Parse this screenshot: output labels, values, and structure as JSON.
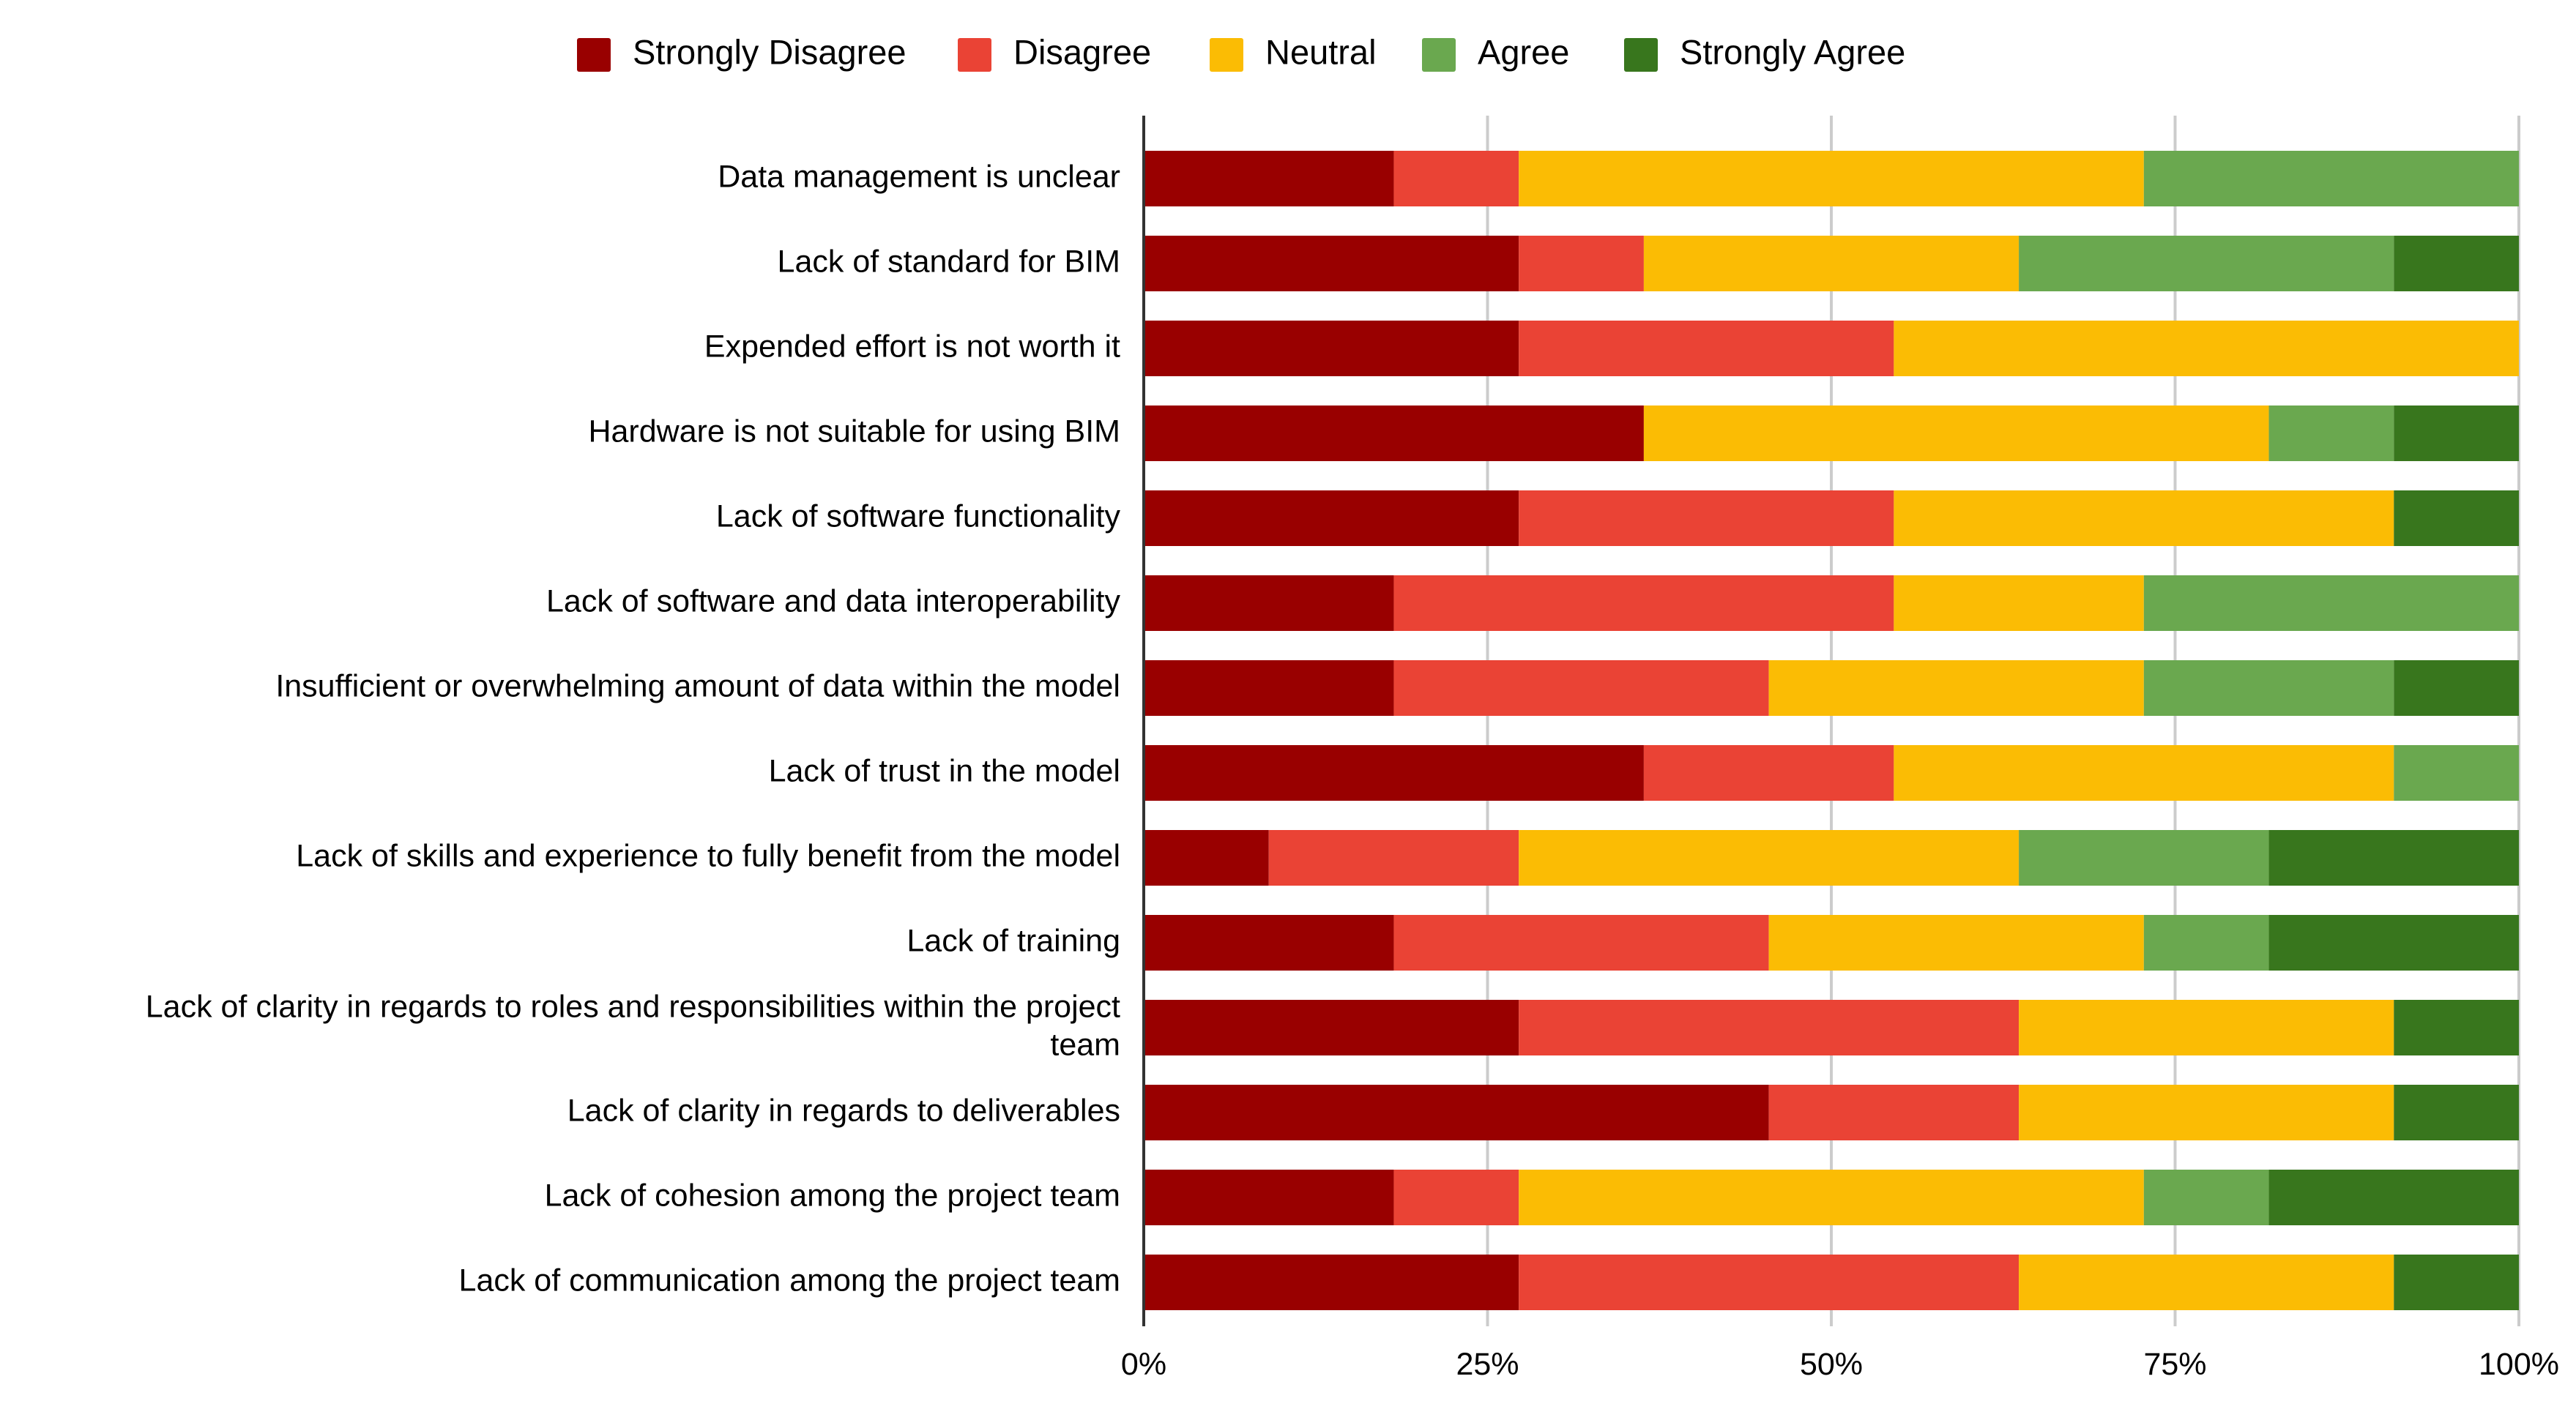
{
  "chart_data": {
    "type": "bar",
    "orientation": "horizontal",
    "stacked": "percent",
    "legend_position": "top",
    "grid": true,
    "xlim": [
      0,
      100
    ],
    "x_ticks": [
      "0%",
      "25%",
      "50%",
      "75%",
      "100%"
    ],
    "categories": [
      [
        "Data management is unclear"
      ],
      [
        "Lack of standard for BIM"
      ],
      [
        "Expended effort is not worth it"
      ],
      [
        "Hardware is not suitable for using BIM"
      ],
      [
        "Lack of software functionality"
      ],
      [
        "Lack of software and data interoperability"
      ],
      [
        "Insufficient or overwhelming amount of data within the model"
      ],
      [
        "Lack of trust in the model"
      ],
      [
        "Lack of skills and experience to fully benefit from the model"
      ],
      [
        "Lack of training"
      ],
      [
        "Lack of clarity in regards to roles and responsibilities within the project",
        "team"
      ],
      [
        "Lack of clarity in regards to deliverables"
      ],
      [
        "Lack of cohesion among the project team"
      ],
      [
        "Lack of communication among the project team"
      ]
    ],
    "series": [
      {
        "name": "Strongly Disagree",
        "color": "#990000",
        "values": [
          18.2,
          27.3,
          27.3,
          36.4,
          27.3,
          18.2,
          18.2,
          36.4,
          9.1,
          18.2,
          27.3,
          45.5,
          18.2,
          27.3
        ]
      },
      {
        "name": "Disagree",
        "color": "#ea4335",
        "values": [
          9.1,
          9.1,
          27.3,
          0,
          27.3,
          36.4,
          27.3,
          18.2,
          18.2,
          27.3,
          36.4,
          18.2,
          9.1,
          36.4
        ]
      },
      {
        "name": "Neutral",
        "color": "#fbbc04",
        "values": [
          45.5,
          27.3,
          45.5,
          45.5,
          36.4,
          18.2,
          27.3,
          36.4,
          36.4,
          27.3,
          27.3,
          27.3,
          45.5,
          27.3
        ]
      },
      {
        "name": "Agree",
        "color": "#6aa84f",
        "values": [
          27.3,
          27.3,
          0,
          9.1,
          0,
          27.3,
          18.2,
          9.1,
          18.2,
          9.1,
          0,
          0,
          9.1,
          0
        ]
      },
      {
        "name": "Strongly Agree",
        "color": "#38761d",
        "values": [
          0,
          9.1,
          0,
          9.1,
          9.1,
          0,
          9.1,
          0,
          18.2,
          18.2,
          9.1,
          9.1,
          18.2,
          9.1
        ]
      }
    ]
  }
}
